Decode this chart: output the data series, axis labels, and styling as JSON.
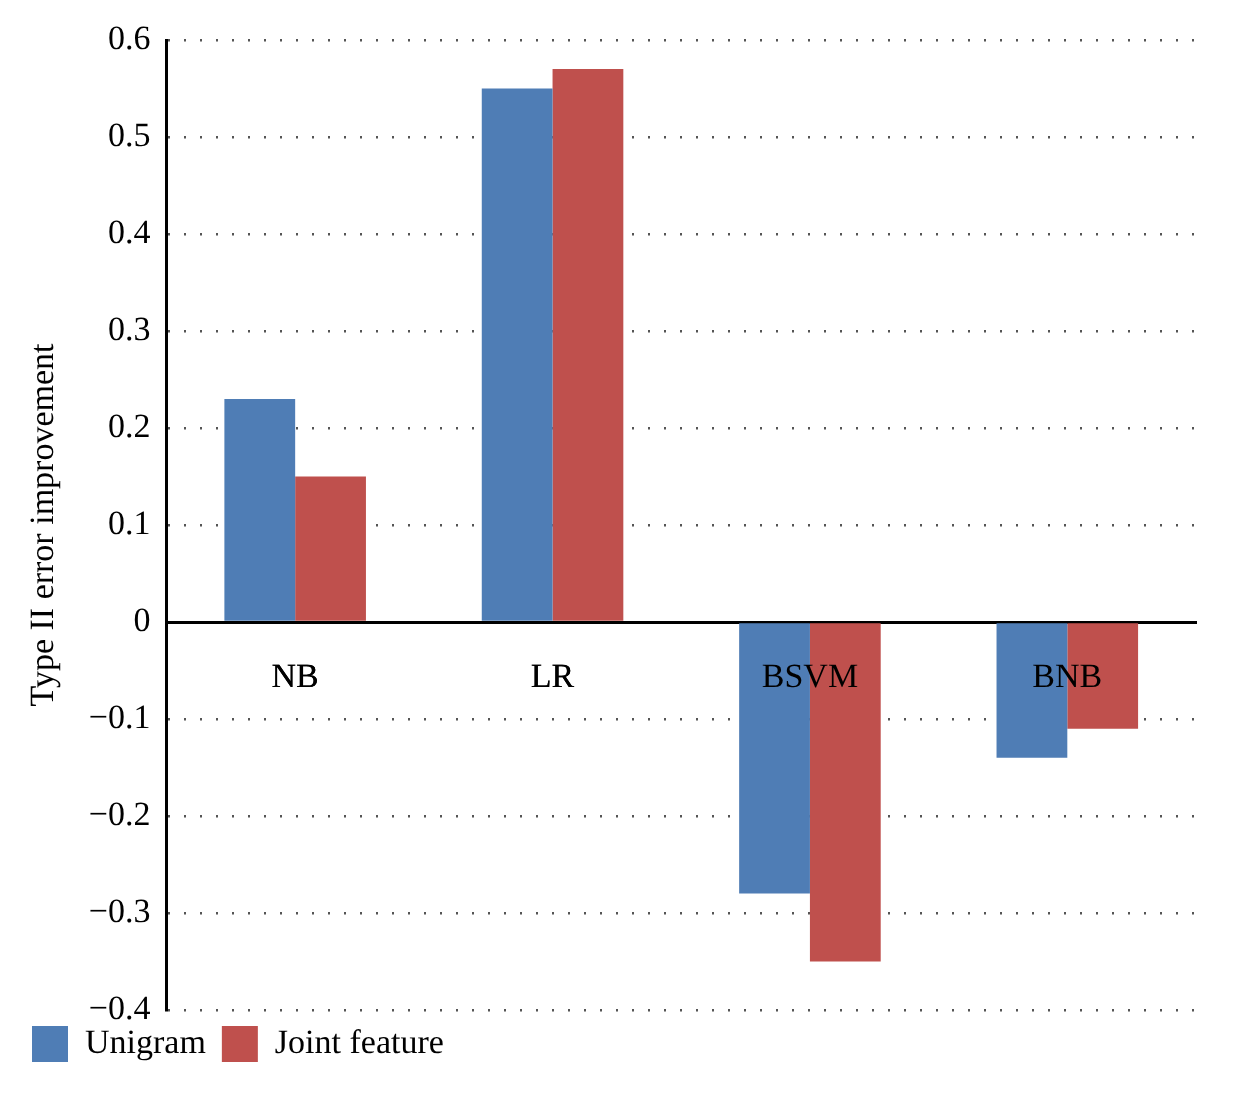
{
  "chart_data": {
    "type": "bar",
    "ylabel": "Type II error improvement",
    "categories": [
      "NB",
      "LR",
      "BSVM",
      "BNB"
    ],
    "series": [
      {
        "name": "Unigram",
        "color": "#4f7db5",
        "values": [
          0.23,
          0.55,
          -0.28,
          -0.14
        ]
      },
      {
        "name": "Joint feature",
        "color": "#bf504d",
        "values": [
          0.15,
          0.57,
          -0.35,
          -0.11
        ]
      }
    ],
    "ylim": [
      -0.4,
      0.6
    ],
    "yticks": [
      {
        "value": -0.4,
        "label": "−0.4"
      },
      {
        "value": -0.3,
        "label": "−0.3"
      },
      {
        "value": -0.2,
        "label": "−0.2"
      },
      {
        "value": -0.1,
        "label": "−0.1"
      },
      0,
      0.1,
      0.2,
      0.3,
      0.4,
      0.5,
      0.6
    ],
    "grid": "y",
    "legend": "bottom left"
  }
}
